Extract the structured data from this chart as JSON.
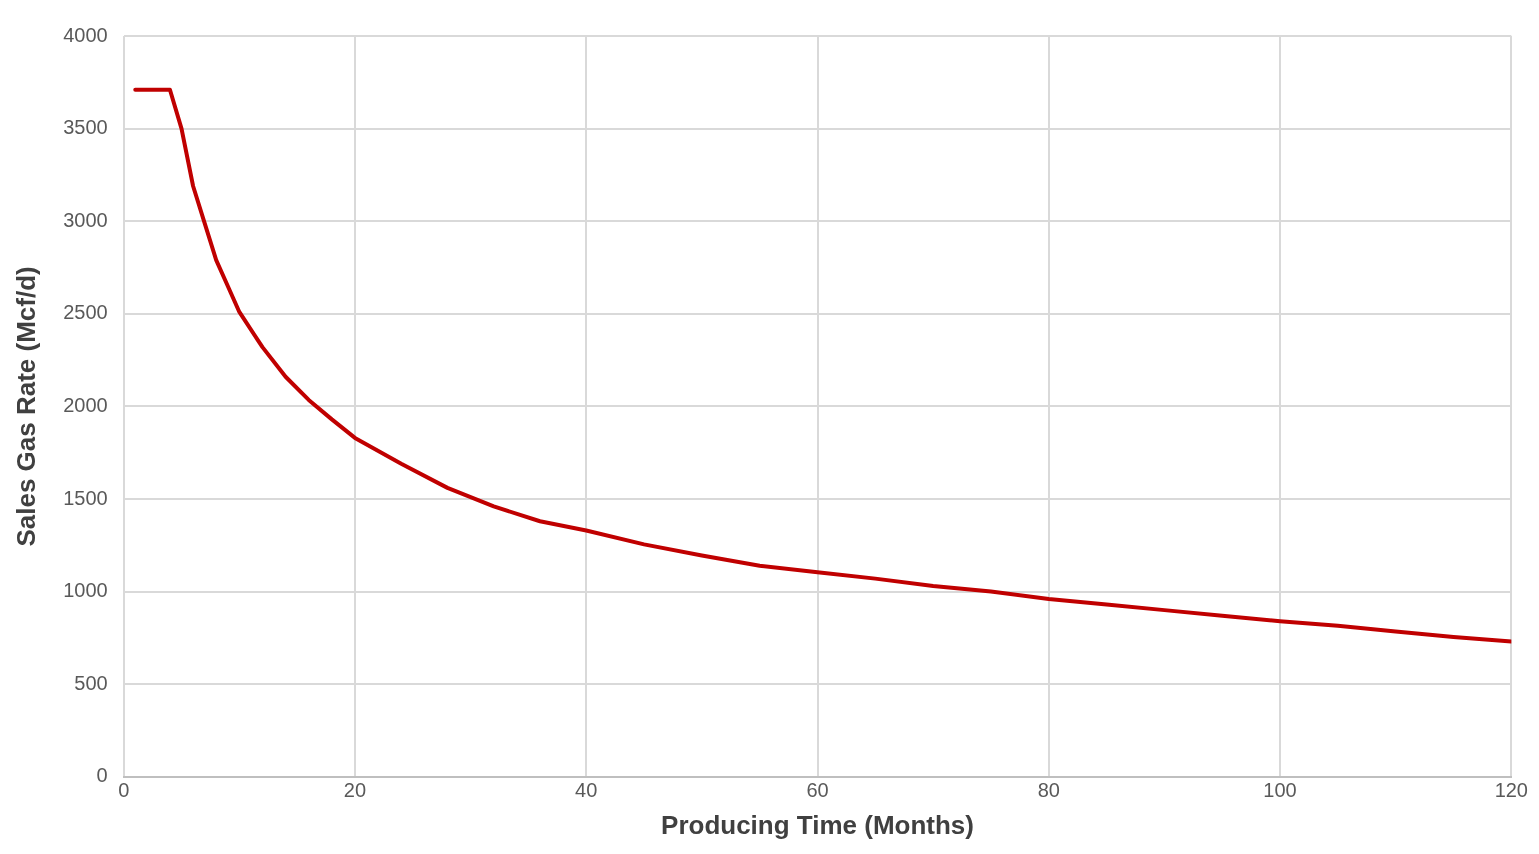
{
  "chart_data": {
    "type": "line",
    "xlabel": "Producing Time (Months)",
    "ylabel": "Sales Gas Rate (Mcf/d)",
    "series": [
      {
        "color": "#c00000",
        "x": [
          1,
          4,
          5,
          6,
          7,
          8,
          9,
          10,
          12,
          14,
          16,
          18,
          20,
          24,
          28,
          32,
          36,
          40,
          45,
          50,
          55,
          60,
          65,
          70,
          75,
          80,
          85,
          90,
          95,
          100,
          105,
          110,
          115,
          120
        ],
        "values": [
          3710,
          3710,
          3500,
          3190,
          2990,
          2790,
          2650,
          2510,
          2320,
          2160,
          2035,
          1930,
          1830,
          1690,
          1560,
          1460,
          1380,
          1330,
          1255,
          1195,
          1140,
          1105,
          1070,
          1030,
          1000,
          960,
          930,
          900,
          870,
          840,
          815,
          785,
          755,
          730
        ]
      }
    ],
    "xlim": [
      0,
      120
    ],
    "xticks": [
      0,
      20,
      40,
      60,
      80,
      100,
      120
    ],
    "ylim": [
      0,
      4000
    ],
    "yticks": [
      0,
      500,
      1000,
      1500,
      2000,
      2500,
      3000,
      3500,
      4000
    ],
    "grid": true,
    "legend": false,
    "marker": "none",
    "line_style": "solid"
  }
}
